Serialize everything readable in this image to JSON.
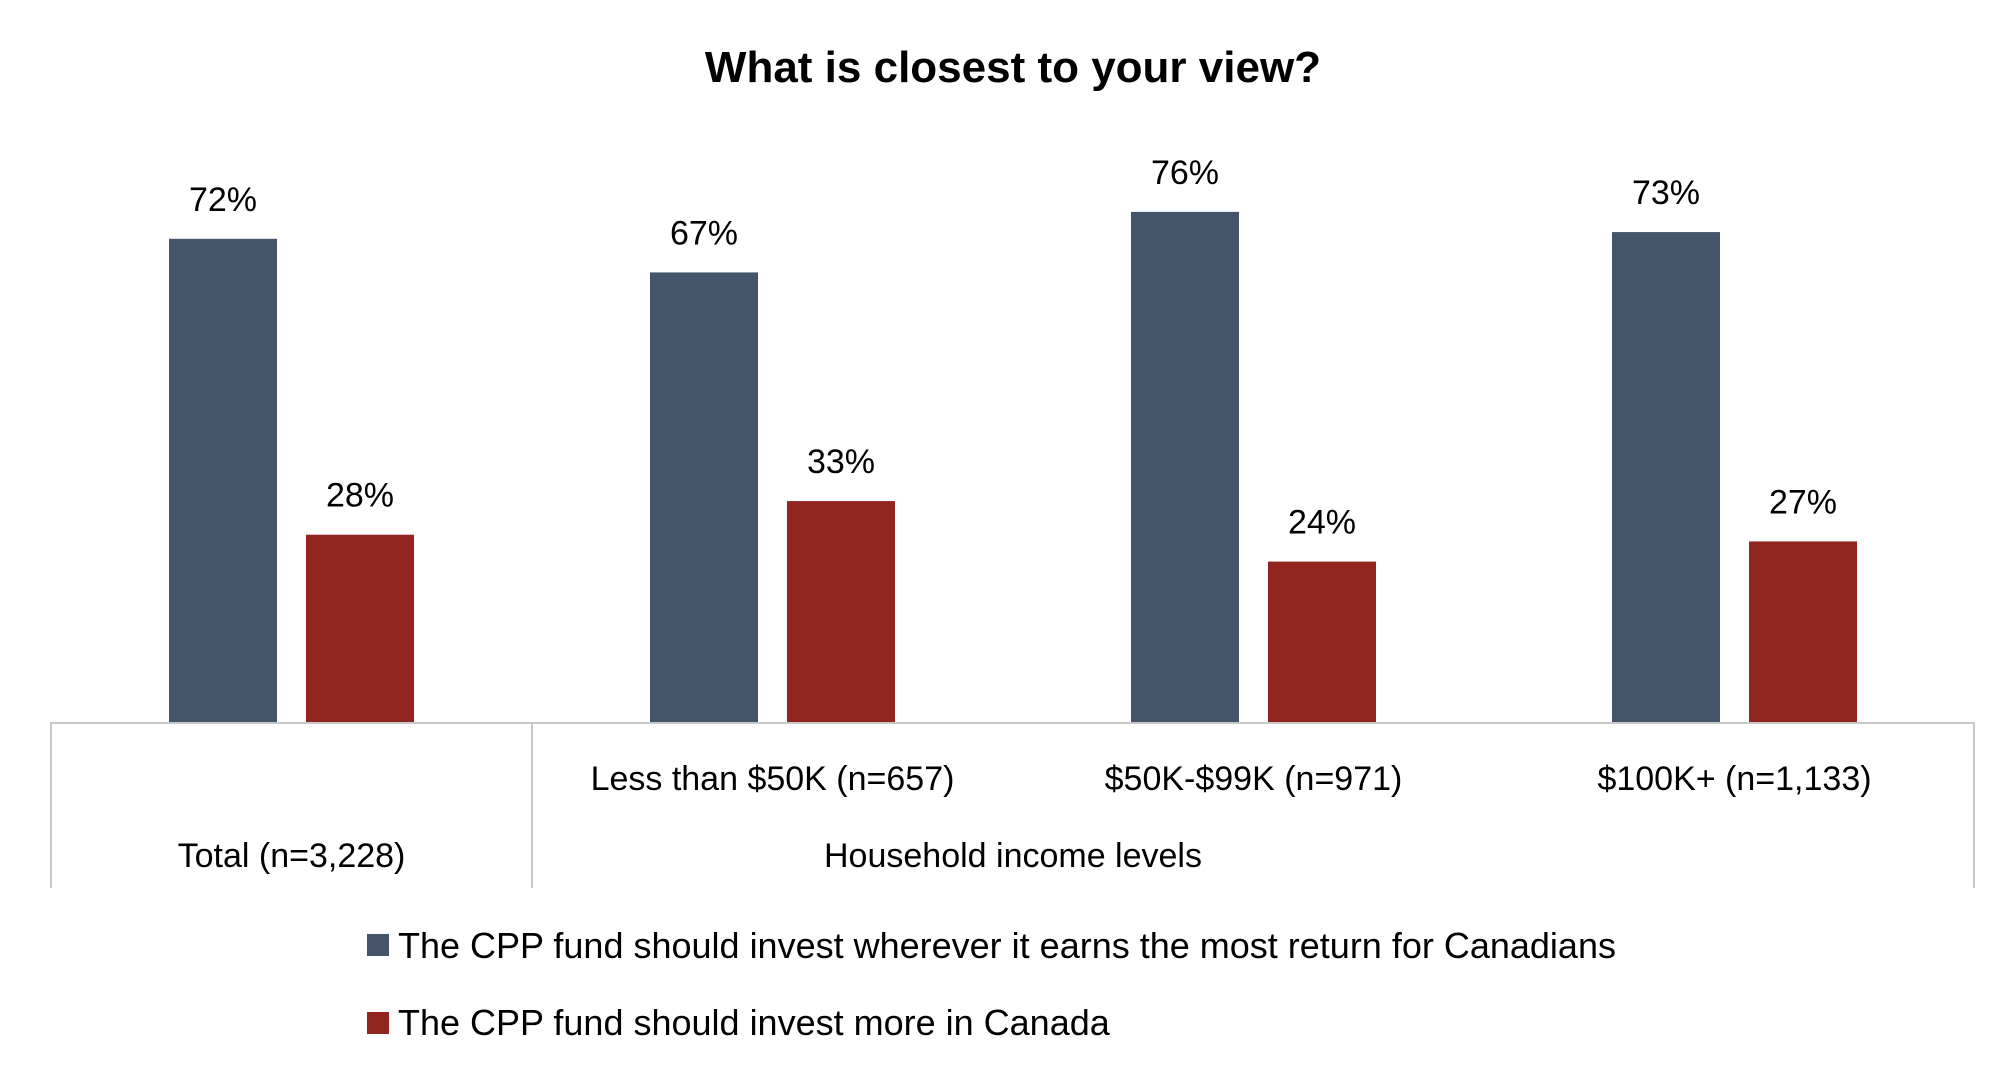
{
  "chart_data": {
    "type": "bar",
    "title": "What is closest to your view?",
    "ylim": [
      0,
      100
    ],
    "grid": false,
    "legend_position": "bottom",
    "categories": [
      "Total (n=3,228)",
      "Less than $50K (n=657)",
      "$50K-$99K (n=971)",
      "$100K+ (n=1,133)"
    ],
    "group_label": "Household income levels",
    "series": [
      {
        "name": "The CPP fund should invest wherever it earns the most return for Canadians",
        "color": "#44546a",
        "values": [
          72,
          67,
          76,
          73
        ],
        "labels": [
          "72%",
          "67%",
          "76%",
          "73%"
        ]
      },
      {
        "name": "The CPP fund should invest more in Canada",
        "color": "#922520",
        "values": [
          28,
          33,
          24,
          27
        ],
        "labels": [
          "28%",
          "33%",
          "24%",
          "27%"
        ]
      }
    ]
  }
}
